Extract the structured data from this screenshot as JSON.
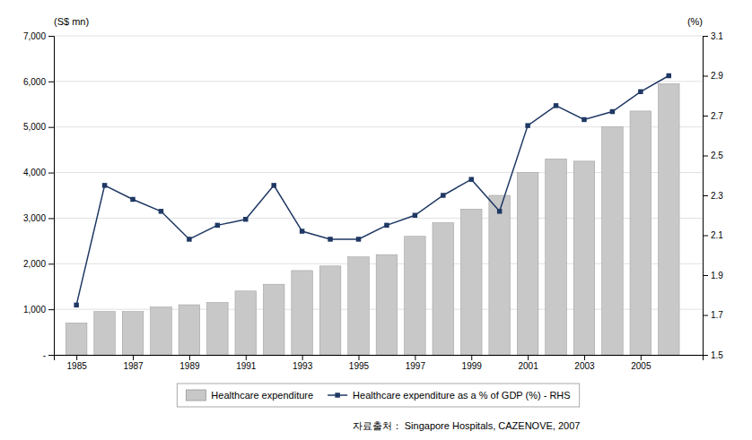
{
  "chart_data": {
    "type": "bar",
    "x": [
      1985,
      1986,
      1987,
      1988,
      1989,
      1990,
      1991,
      1992,
      1993,
      1994,
      1995,
      1996,
      1997,
      1998,
      1999,
      2000,
      2001,
      2002,
      2003,
      2004,
      2005,
      2006
    ],
    "series": [
      {
        "name": "Healthcare expenditure",
        "type": "bar",
        "color": "#c8c8c8",
        "values": [
          700,
          950,
          950,
          1050,
          1100,
          1150,
          1400,
          1550,
          1850,
          1950,
          2150,
          2200,
          2600,
          2900,
          3200,
          3500,
          4000,
          4300,
          4250,
          5000,
          5350,
          5950
        ]
      },
      {
        "name": "Healthcare expenditure as a % of GDP (%) - RHS",
        "type": "line",
        "color": "#1f3864",
        "marker": "square",
        "axis": "y2",
        "values": [
          1.75,
          2.35,
          2.28,
          2.22,
          2.08,
          2.15,
          2.18,
          2.35,
          2.12,
          2.08,
          2.08,
          2.15,
          2.2,
          2.3,
          2.38,
          2.22,
          2.65,
          2.75,
          2.68,
          2.72,
          2.82,
          2.9
        ]
      }
    ],
    "xlim": [
      1984.2,
      2007.2
    ],
    "xticks": [
      1985,
      1987,
      1989,
      1991,
      1993,
      1995,
      1997,
      1999,
      2001,
      2003,
      2005
    ],
    "ylim": [
      0,
      7000
    ],
    "yticks": [
      {
        "value": 0,
        "label": "-"
      },
      {
        "value": 1000,
        "label": "1,000"
      },
      {
        "value": 2000,
        "label": "2,000"
      },
      {
        "value": 3000,
        "label": "3,000"
      },
      {
        "value": 4000,
        "label": "4,000"
      },
      {
        "value": 5000,
        "label": "5,000"
      },
      {
        "value": 6000,
        "label": "6,000"
      },
      {
        "value": 7000,
        "label": "7,000"
      }
    ],
    "y2lim": [
      1.5,
      3.1
    ],
    "y2ticks": [
      1.5,
      1.7,
      1.9,
      2.1,
      2.3,
      2.5,
      2.7,
      2.9,
      3.1
    ],
    "ylabel": "(S$ mn)",
    "y2label": "(%)",
    "annotations": [
      "자료출처： Singapore Hospitals, CAZENOVE, 2007"
    ],
    "grid": true,
    "legend": "bottom"
  }
}
